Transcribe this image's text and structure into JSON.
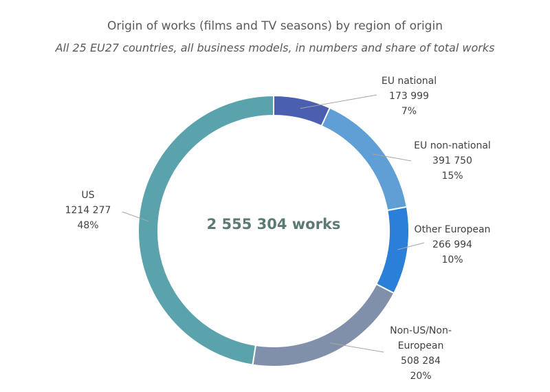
{
  "chart_data": {
    "type": "pie",
    "variant": "donut",
    "title": "Origin of works (films and TV seasons) by region of origin",
    "subtitle": "All 25 EU27 countries, all business models, in numbers and share of total works",
    "center_label": "2 555 304 works",
    "legend": "none",
    "slices": [
      {
        "name": "EU national",
        "name_lines": [
          "EU national"
        ],
        "value": 173999,
        "value_label": "173 999",
        "share_label": "7%",
        "color": "#4a5fb0"
      },
      {
        "name": "EU non-national",
        "name_lines": [
          "EU non-national"
        ],
        "value": 391750,
        "value_label": "391 750",
        "share_label": "15%",
        "color": "#5f9fd6"
      },
      {
        "name": "Other European",
        "name_lines": [
          "Other European"
        ],
        "value": 266994,
        "value_label": "266 994",
        "share_label": "10%",
        "color": "#2a7fd8"
      },
      {
        "name": "Non-US/Non-European",
        "name_lines": [
          "Non-US/Non-",
          "European"
        ],
        "value": 508284,
        "value_label": "508 284",
        "share_label": "20%",
        "color": "#8090aa"
      },
      {
        "name": "US",
        "name_lines": [
          "US"
        ],
        "value": 1214277,
        "value_label": "1214 277",
        "share_label": "48%",
        "color": "#5aa3ad"
      }
    ]
  }
}
